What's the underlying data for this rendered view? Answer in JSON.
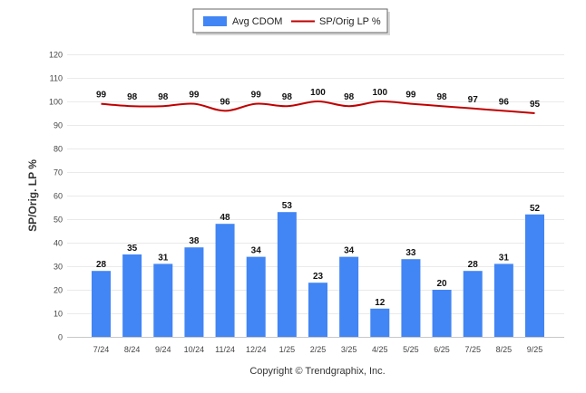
{
  "chart_data": {
    "type": "bar",
    "categories": [
      "7/24",
      "8/24",
      "9/24",
      "10/24",
      "11/24",
      "12/24",
      "1/25",
      "2/25",
      "3/25",
      "4/25",
      "5/25",
      "6/25",
      "7/25",
      "8/25",
      "9/25"
    ],
    "series": [
      {
        "name": "Avg CDOM",
        "kind": "bar",
        "color": "#4285f4",
        "values": [
          28,
          35,
          31,
          38,
          48,
          34,
          53,
          23,
          34,
          12,
          33,
          20,
          28,
          31,
          52
        ]
      },
      {
        "name": "SP/Orig LP %",
        "kind": "line",
        "color": "#c00000",
        "values": [
          99,
          98,
          98,
          99,
          96,
          99,
          98,
          100,
          98,
          100,
          99,
          98,
          97,
          96,
          95
        ]
      }
    ],
    "ylabel": "SP/Orig. LP %",
    "ylim": [
      0,
      120
    ],
    "yticks": [
      0,
      10,
      20,
      30,
      40,
      50,
      60,
      70,
      80,
      90,
      100,
      110,
      120
    ],
    "grid": true,
    "legend_position": "top-center"
  },
  "credit": "Copyright © Trendgraphix, Inc."
}
